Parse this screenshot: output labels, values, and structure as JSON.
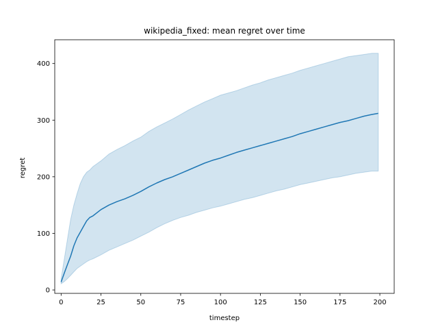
{
  "chart_data": {
    "type": "line",
    "title": "wikipedia_fixed: mean regret over time",
    "xlabel": "timestep",
    "ylabel": "regret",
    "xlim": [
      -4,
      209
    ],
    "ylim": [
      -6,
      442
    ],
    "xticks": [
      0,
      25,
      50,
      75,
      100,
      125,
      150,
      175,
      200
    ],
    "yticks": [
      0,
      100,
      200,
      300,
      400
    ],
    "grid": false,
    "legend": "none",
    "colors": {
      "line": "#1f77b4",
      "band": "#1f77b4",
      "band_opacity": 0.2
    },
    "series": [
      {
        "x": [
          0,
          2,
          4,
          6,
          8,
          10,
          12,
          14,
          16,
          18,
          20,
          25,
          30,
          35,
          40,
          45,
          50,
          55,
          60,
          65,
          70,
          75,
          80,
          85,
          90,
          95,
          100,
          105,
          110,
          115,
          120,
          125,
          130,
          135,
          140,
          145,
          150,
          155,
          160,
          165,
          170,
          175,
          180,
          185,
          190,
          195,
          199
        ],
        "mean": [
          14,
          30,
          45,
          60,
          78,
          92,
          102,
          112,
          122,
          128,
          131,
          142,
          150,
          156,
          161,
          167,
          174,
          182,
          189,
          195,
          200,
          206,
          212,
          218,
          224,
          229,
          233,
          238,
          243,
          247,
          251,
          255,
          259,
          263,
          267,
          271,
          276,
          280,
          284,
          288,
          292,
          296,
          299,
          303,
          307,
          310,
          312
        ],
        "upper": [
          20,
          55,
          90,
          125,
          150,
          170,
          188,
          200,
          208,
          212,
          218,
          228,
          240,
          248,
          255,
          263,
          270,
          280,
          288,
          295,
          302,
          310,
          318,
          325,
          332,
          338,
          344,
          348,
          352,
          357,
          362,
          366,
          371,
          375,
          379,
          383,
          388,
          392,
          396,
          400,
          404,
          408,
          412,
          414,
          416,
          418,
          418
        ],
        "lower": [
          11,
          15,
          20,
          26,
          32,
          38,
          42,
          46,
          50,
          53,
          55,
          62,
          70,
          76,
          82,
          88,
          95,
          102,
          110,
          117,
          123,
          128,
          132,
          137,
          141,
          145,
          148,
          152,
          156,
          160,
          163,
          167,
          171,
          175,
          178,
          182,
          186,
          189,
          192,
          195,
          198,
          200,
          203,
          206,
          208,
          210,
          210
        ]
      }
    ]
  }
}
